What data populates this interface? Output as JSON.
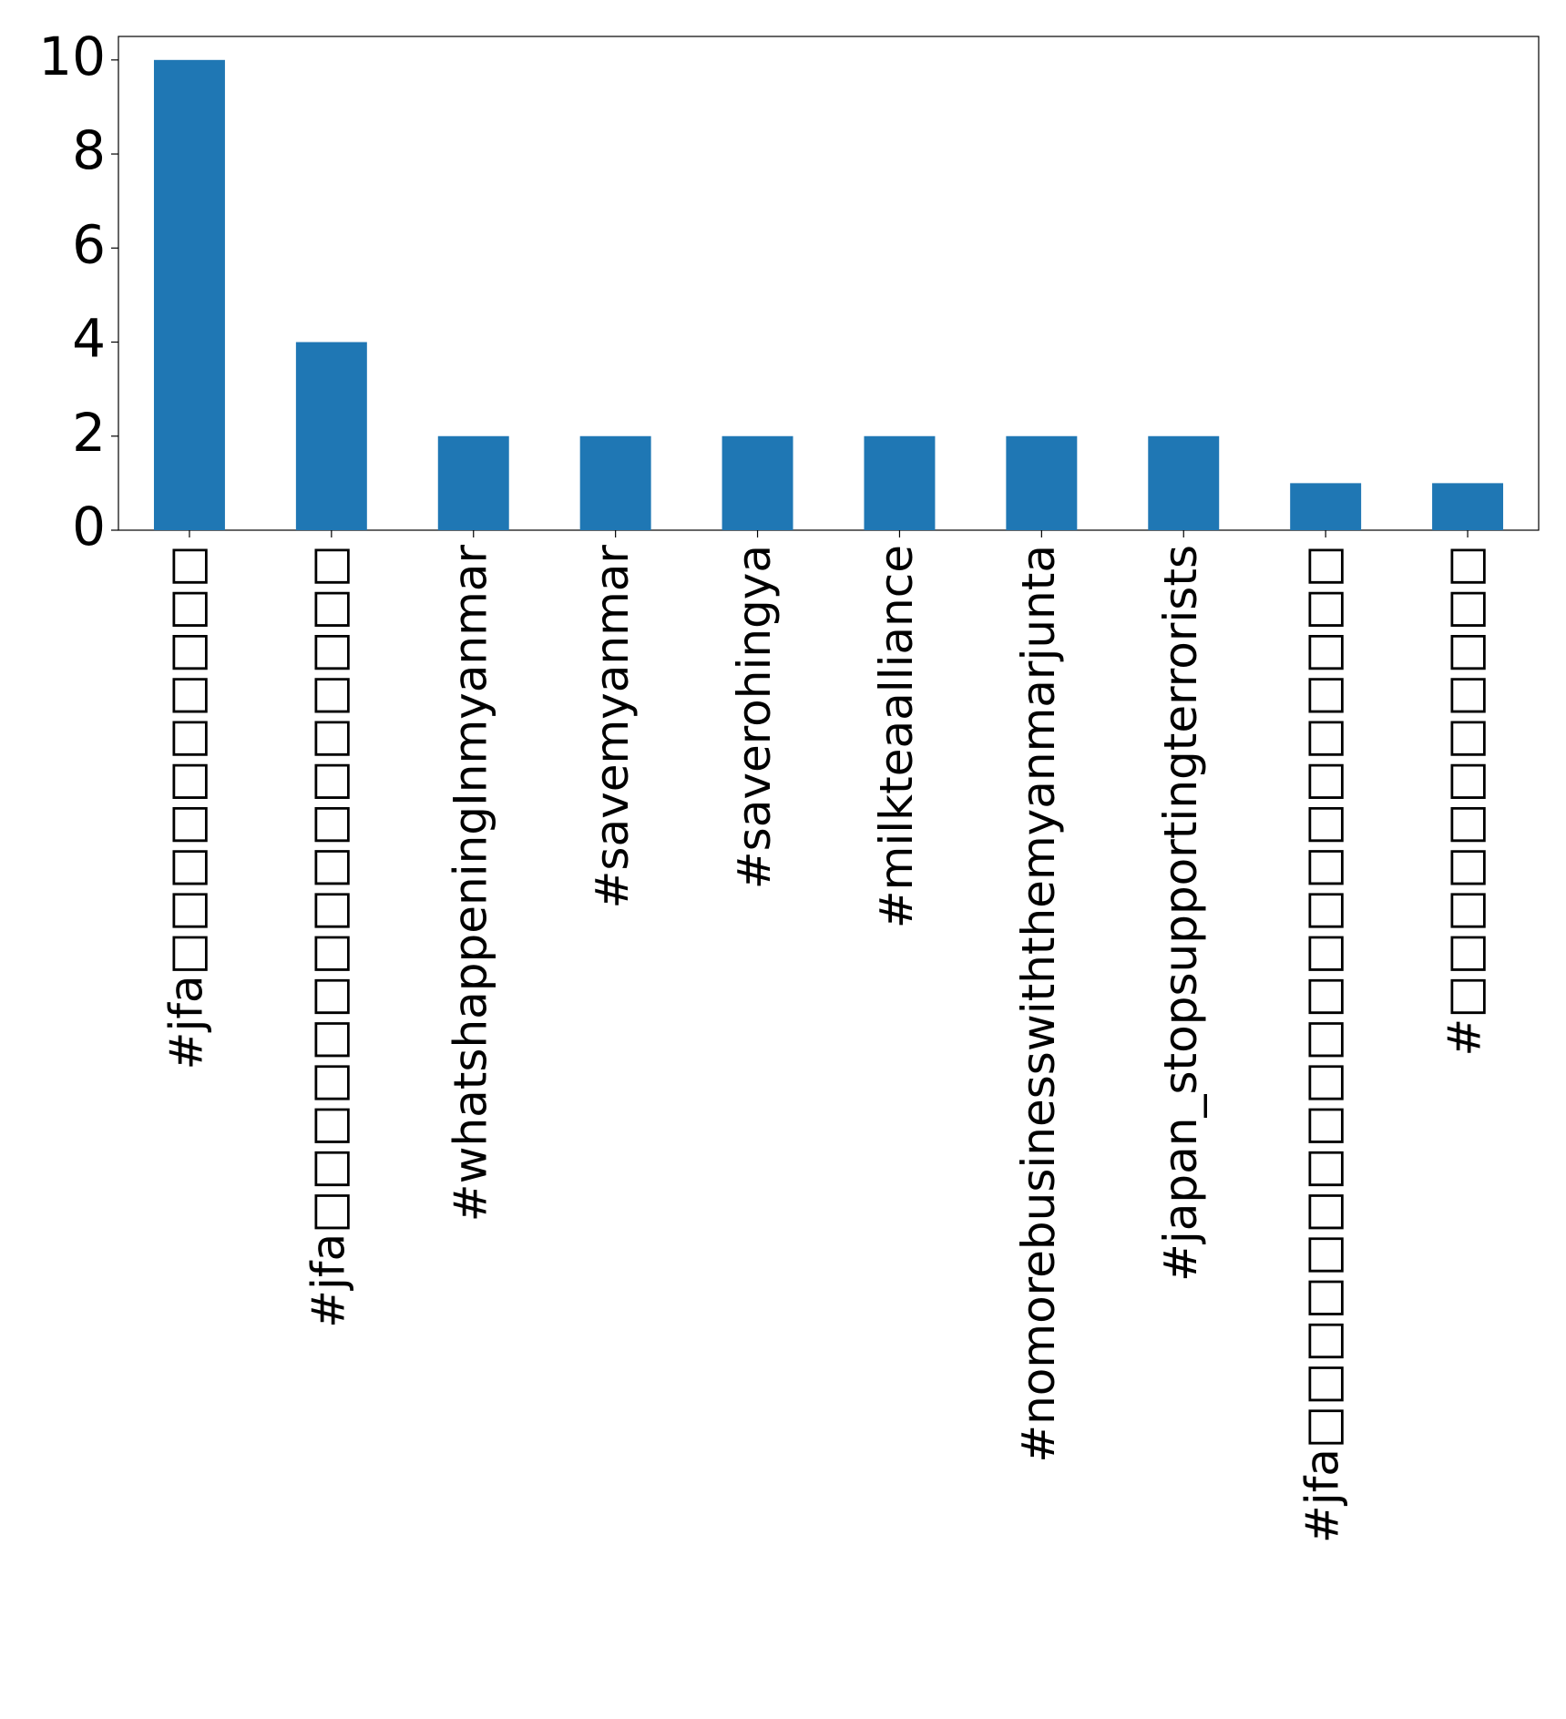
{
  "chart_data": {
    "type": "bar",
    "categories": [
      "#jfa□□□□□□□□□□",
      "#jfa□□□□□□□□□□□□□□□□",
      "#whatshappeningInmyanmar",
      "#savemyanmar",
      "#saverohingya",
      "#milkteaalliance",
      "#nomorebusinesswiththemyanmarjunta",
      "#japan_stopsupportingterrorists",
      "#jfa□□□□□□□□□□□□□□□□□□□□□",
      "#□□□□□□□□□□□"
    ],
    "values": [
      10,
      4,
      2,
      2,
      2,
      2,
      2,
      2,
      1,
      1
    ],
    "color": "#1f77b4",
    "ylim": [
      0,
      10.5
    ],
    "yticks": [
      0,
      2,
      4,
      6,
      8,
      10
    ],
    "grid": false
  }
}
